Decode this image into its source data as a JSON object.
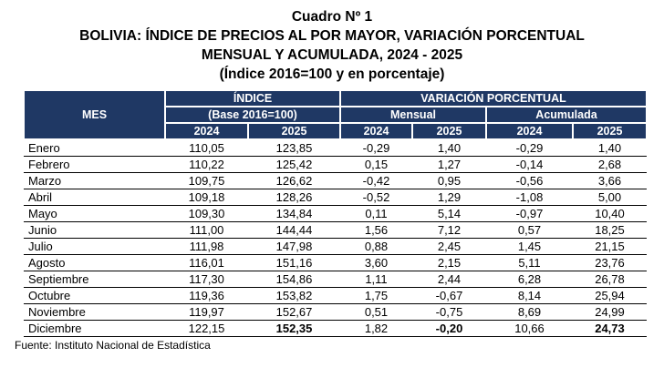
{
  "title": {
    "line1": "Cuadro Nº 1",
    "line2": "BOLIVIA: ÍNDICE DE PRECIOS AL POR MAYOR, VARIACIÓN PORCENTUAL",
    "line3": "MENSUAL Y ACUMULADA, 2024 - 2025",
    "line4": "(Índice 2016=100 y en porcentaje)"
  },
  "table": {
    "header": {
      "mes": "MES",
      "indice": "ÍNDICE",
      "indice_base": "(Base 2016=100)",
      "variacion": "VARIACIÓN PORCENTUAL",
      "mensual": "Mensual",
      "acumulada": "Acumulada",
      "years": [
        "2024",
        "2025",
        "2024",
        "2025",
        "2024",
        "2025"
      ]
    },
    "rows": [
      {
        "mes": "Enero",
        "values": [
          "110,05",
          "123,85",
          "-0,29",
          "1,40",
          "-0,29",
          "1,40"
        ]
      },
      {
        "mes": "Febrero",
        "values": [
          "110,22",
          "125,42",
          "0,15",
          "1,27",
          "-0,14",
          "2,68"
        ]
      },
      {
        "mes": "Marzo",
        "values": [
          "109,75",
          "126,62",
          "-0,42",
          "0,95",
          "-0,56",
          "3,66"
        ]
      },
      {
        "mes": "Abril",
        "values": [
          "109,18",
          "128,26",
          "-0,52",
          "1,29",
          "-1,08",
          "5,00"
        ]
      },
      {
        "mes": "Mayo",
        "values": [
          "109,30",
          "134,84",
          "0,11",
          "5,14",
          "-0,97",
          "10,40"
        ]
      },
      {
        "mes": "Junio",
        "values": [
          "111,00",
          "144,44",
          "1,56",
          "7,12",
          "0,57",
          "18,25"
        ]
      },
      {
        "mes": "Julio",
        "values": [
          "111,98",
          "147,98",
          "0,88",
          "2,45",
          "1,45",
          "21,15"
        ]
      },
      {
        "mes": "Agosto",
        "values": [
          "116,01",
          "151,16",
          "3,60",
          "2,15",
          "5,11",
          "23,76"
        ]
      },
      {
        "mes": "Septiembre",
        "values": [
          "117,30",
          "154,86",
          "1,11",
          "2,44",
          "6,28",
          "26,78"
        ]
      },
      {
        "mes": "Octubre",
        "values": [
          "119,36",
          "153,82",
          "1,75",
          "-0,67",
          "8,14",
          "25,94"
        ]
      },
      {
        "mes": "Noviembre",
        "values": [
          "119,97",
          "152,67",
          "0,51",
          "-0,75",
          "8,69",
          "24,99"
        ]
      },
      {
        "mes": "Diciembre",
        "values": [
          "122,15",
          "152,35",
          "1,82",
          "-0,20",
          "10,66",
          "24,73"
        ],
        "bold_cols": [
          1,
          3,
          5
        ]
      }
    ]
  },
  "footer": {
    "source": "Fuente: Instituto Nacional de Estadística"
  },
  "colors": {
    "header_bg": "#1F3864",
    "header_text": "#FFFFFF",
    "body_text": "#000000",
    "row_line": "#000000"
  }
}
